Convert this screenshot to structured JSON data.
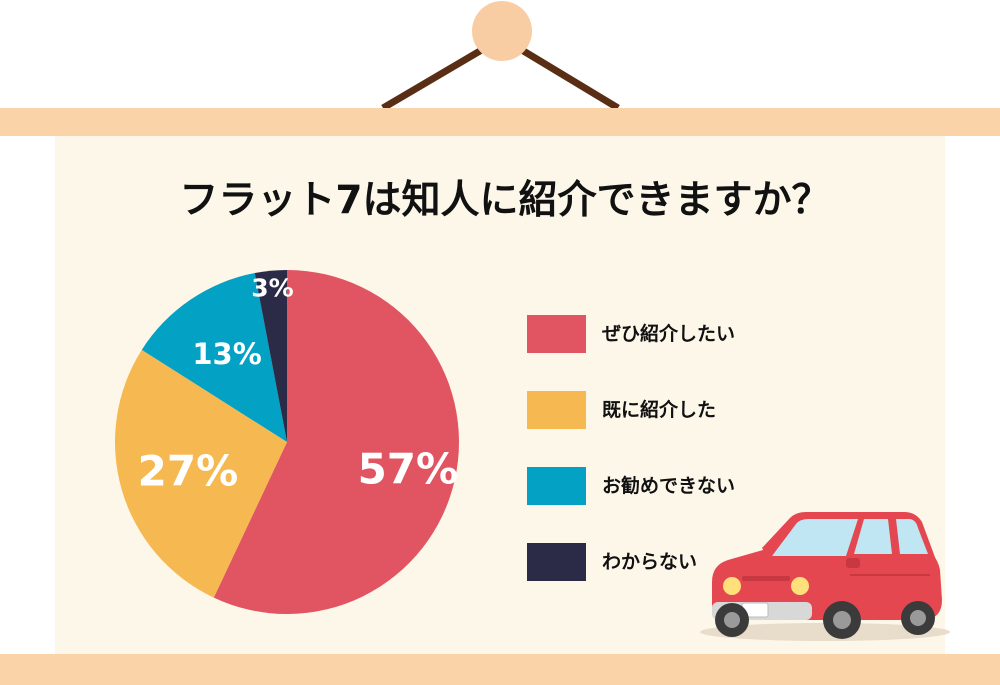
{
  "title": "フラット7は知人に紹介できますか？",
  "colors": {
    "scroll_rod": "#fbd3a8",
    "poster_bg": "#fdf7ea",
    "hook": "#f9cda3",
    "string": "#5a2d15",
    "text": "#111111"
  },
  "chart_data": {
    "type": "pie",
    "title": "フラット7は知人に紹介できますか？",
    "slices": [
      {
        "label": "ぜひ紹介したい",
        "value": 57,
        "display": "57%",
        "color": "#e05561"
      },
      {
        "label": "既に紹介した",
        "value": 27,
        "display": "27%",
        "color": "#f6b951"
      },
      {
        "label": "お勧めできない",
        "value": 13,
        "display": "13%",
        "color": "#03a1c4"
      },
      {
        "label": "わからない",
        "value": 3,
        "display": "3%",
        "color": "#2b2a47"
      }
    ],
    "legend_position": "right",
    "start_angle": "12 o'clock",
    "direction": "clockwise"
  },
  "decoration": {
    "car_icon": "red-car-icon",
    "hook_icon": "round-hook-icon"
  }
}
